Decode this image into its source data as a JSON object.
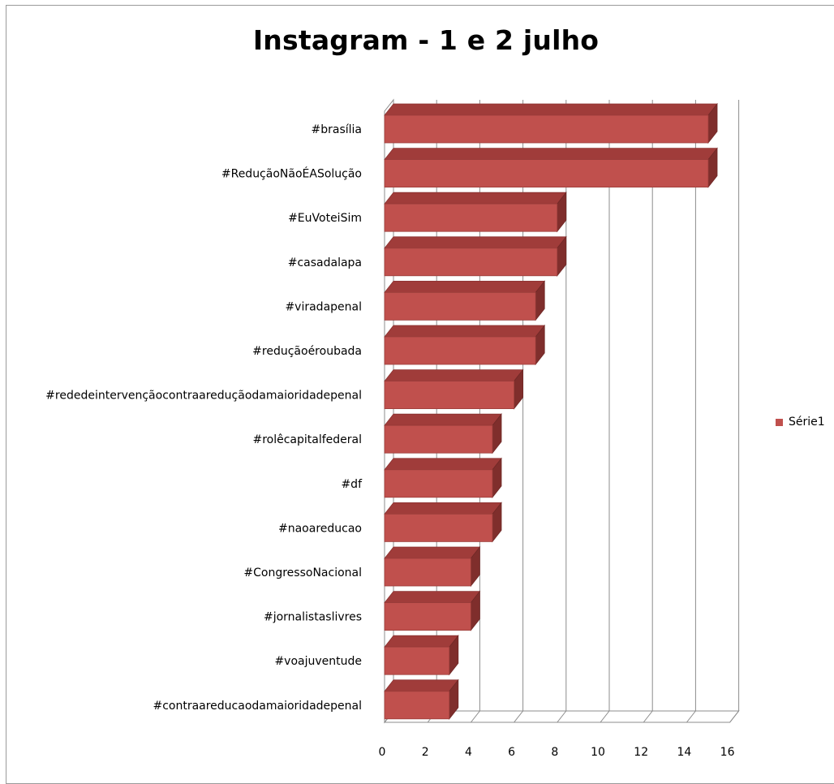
{
  "chart_data": {
    "type": "bar",
    "orientation": "horizontal",
    "style": "3d-clustered-bar",
    "title": "Instagram - 1 e 2 julho",
    "xlabel": "",
    "ylabel": "",
    "categories": [
      "#brasília",
      "#ReduçãoNãoÉASolução",
      "#EuVoteiSim",
      "#casadalapa",
      "#viradapenal",
      "#reduçãoéroubada",
      "#rededeintervençãocontraareduçãodamaioridadepenal",
      "#rolêcapitalfederal",
      "#df",
      "#naoareducao",
      "#CongressoNacional",
      "#jornalistaslivres",
      "#voajuventude",
      "#contraareducaodamaioridadepenal"
    ],
    "series": [
      {
        "name": "Série1",
        "values": [
          15,
          15,
          8,
          8,
          7,
          7,
          6,
          5,
          5,
          5,
          4,
          4,
          3,
          3
        ],
        "color": "#c0504d"
      }
    ],
    "xlim": [
      0,
      16
    ],
    "xticks": [
      0,
      2,
      4,
      6,
      8,
      10,
      12,
      14,
      16
    ],
    "grid": true,
    "legend": "right"
  }
}
